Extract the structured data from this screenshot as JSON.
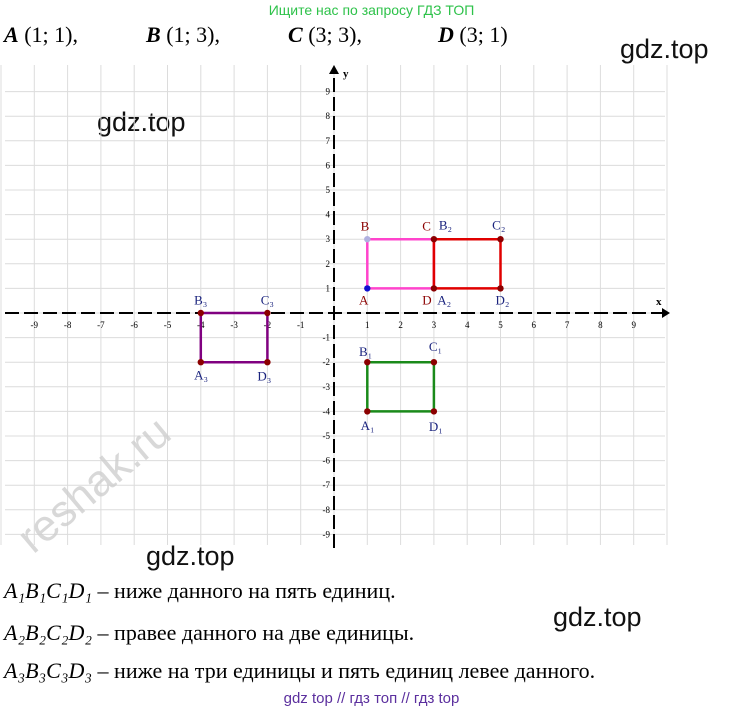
{
  "banner": "Ищите нас по запросу ГДЗ ТОП",
  "points": [
    {
      "name": "A",
      "value": "(1; 1),"
    },
    {
      "name": "B",
      "value": "(1; 3),"
    },
    {
      "name": "C",
      "value": "(3; 3),"
    },
    {
      "name": "D",
      "value": "(3; 1)"
    }
  ],
  "watermarks": [
    "gdz.top",
    "gdz.top",
    "gdz.top",
    "gdz.top"
  ],
  "graph": {
    "x_axis_label": "x",
    "y_axis_label": "y",
    "x_ticks": [
      "-9",
      "-8",
      "-7",
      "-6",
      "-5",
      "-4",
      "-3",
      "-2",
      "-1",
      "1",
      "2",
      "3",
      "4",
      "5",
      "6",
      "7",
      "8",
      "9"
    ],
    "y_ticks": [
      "9",
      "8",
      "7",
      "6",
      "5",
      "4",
      "3",
      "2",
      "1",
      "-1",
      "-2",
      "-3",
      "-4",
      "-5",
      "-6",
      "-7",
      "-8",
      "-9"
    ],
    "colors": {
      "original": "#ff44cc",
      "shift_right": "#e00000",
      "shift_down": "#1a8a1a",
      "shift_left_down": "#800080",
      "vertex": "#8b0000",
      "label": "#1a237e",
      "label_red": "#8b0000"
    },
    "labels": {
      "A": "A",
      "B": "B",
      "C": "C",
      "D": "D",
      "A1": "A₁",
      "B1": "B₁",
      "C1": "C₁",
      "D1": "D₁",
      "A2": "A₂",
      "B2": "B₂",
      "C2": "C₂",
      "D2": "D₂",
      "A3": "A₃",
      "B3": "B₃",
      "C3": "C₃",
      "D3": "D₃"
    }
  },
  "lines": [
    {
      "figure": "A₁B₁C₁D₁",
      "text": " – ниже данного на пять единиц."
    },
    {
      "figure": "A₂B₂C₂D₂",
      "text": " – правее данного на две единицы."
    },
    {
      "figure": "A₃B₃C₃D₃",
      "text": " – ниже на три единицы и пять единиц левее данного."
    }
  ],
  "reshak": "reshak.ru",
  "footer": "gdz top  //  гдз топ  //  гдз top"
}
